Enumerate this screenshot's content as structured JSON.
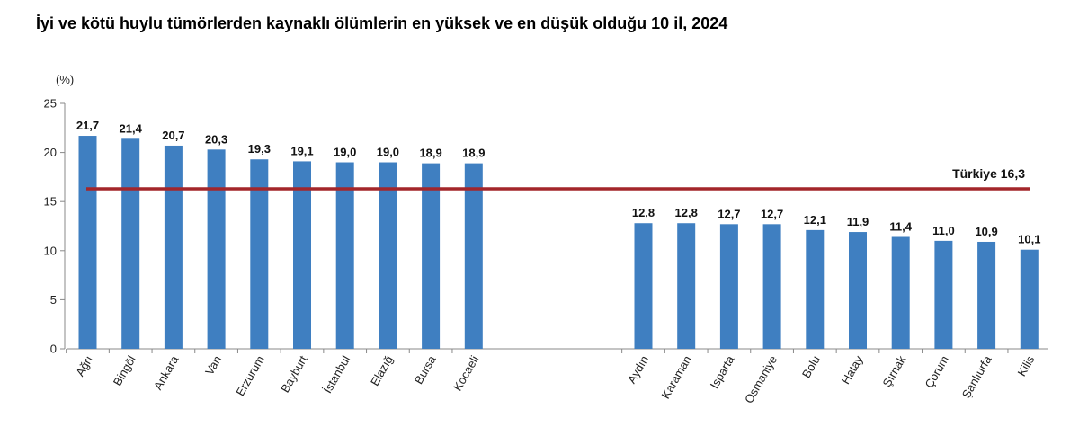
{
  "chart_data": {
    "type": "bar",
    "title": "İyi ve kötü huylu tümörlerden kaynaklı ölümlerin en yüksek ve en düşük olduğu 10 il, 2024",
    "ylabel": "(%)",
    "xlabel": "",
    "ylim": [
      0,
      25
    ],
    "yticks": [
      0,
      5,
      10,
      15,
      20,
      25
    ],
    "grid": false,
    "colors": {
      "bar": "#3f7fc1",
      "reference_line": "#a3262a"
    },
    "series": [
      {
        "name": "",
        "groups": [
          {
            "categories": [
              "Ağrı",
              "Bingöl",
              "Ankara",
              "Van",
              "Erzurum",
              "Bayburt",
              "İstanbul",
              "Elazığ",
              "Bursa",
              "Kocaeli"
            ],
            "values": [
              21.7,
              21.4,
              20.7,
              20.3,
              19.3,
              19.1,
              19.0,
              19.0,
              18.9,
              18.9
            ],
            "value_labels": [
              "21,7",
              "21,4",
              "20,7",
              "20,3",
              "19,3",
              "19,1",
              "19,0",
              "19,0",
              "18,9",
              "18,9"
            ]
          },
          {
            "categories": [
              "Aydın",
              "Karaman",
              "Isparta",
              "Osmaniye",
              "Bolu",
              "Hatay",
              "Şırnak",
              "Çorum",
              "Şanlıurfa",
              "Kilis"
            ],
            "values": [
              12.8,
              12.8,
              12.7,
              12.7,
              12.1,
              11.9,
              11.4,
              11.0,
              10.9,
              10.1
            ],
            "value_labels": [
              "12,8",
              "12,8",
              "12,7",
              "12,7",
              "12,1",
              "11,9",
              "11,4",
              "11,0",
              "10,9",
              "10,1"
            ]
          }
        ]
      }
    ],
    "reference_line": {
      "label": "Türkiye 16,3",
      "value": 16.3
    }
  }
}
